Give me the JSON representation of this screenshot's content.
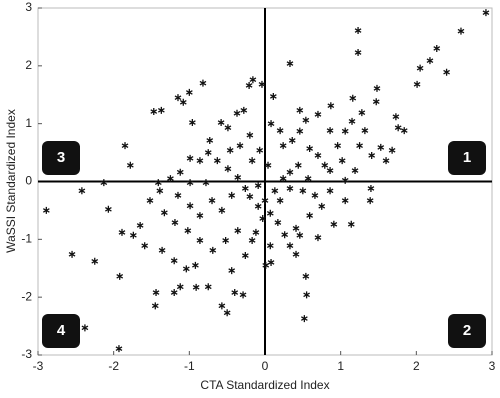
{
  "chart_data": {
    "type": "scatter",
    "xlabel": "CTA Standardized Index",
    "ylabel": "WaSSI Standardized Index",
    "annotations": [
      "1",
      "2",
      "3",
      "4"
    ],
    "xlim": [
      -3,
      3
    ],
    "ylim": [
      -3,
      3
    ],
    "xticks": [
      -3,
      -2,
      -1,
      0,
      1,
      2,
      3
    ],
    "yticks": [
      -3,
      -2,
      -1,
      0,
      1,
      2,
      3
    ],
    "color": "#111111",
    "x": [
      2.92,
      2.59,
      2.27,
      2.4,
      2.18,
      2.05,
      2.01,
      1.23,
      1.23,
      1.16,
      0.33,
      0.87,
      1.48,
      1.47,
      1.73,
      1.76,
      1.84,
      1.28,
      1.15,
      1.06,
      0.86,
      0.7,
      0.54,
      0.46,
      0.36,
      0.24,
      0.11,
      0.08,
      -0.04,
      -0.16,
      -0.21,
      -0.28,
      -0.37,
      -0.49,
      -0.58,
      -0.82,
      -1.0,
      -1.08,
      -1.37,
      -1.47,
      -1.15,
      -0.96,
      -1.85,
      -1.78,
      -2.13,
      -2.42,
      -2.89,
      -2.07,
      -1.89,
      -2.55,
      -2.25,
      -2.38,
      -1.92,
      -1.93,
      -1.59,
      -1.44,
      -1.45,
      -1.2,
      -1.12,
      -1.04,
      -0.91,
      -0.75,
      -0.57,
      -0.4,
      -0.29,
      -0.5,
      0.01,
      0.08,
      0.41,
      0.54,
      0.55,
      0.52,
      0.7,
      0.91,
      1.14,
      1.39,
      1.4,
      1.6,
      1.53,
      1.32,
      1.02,
      0.79,
      0.7,
      0.59,
      0.44,
      0.33,
      0.24,
      0.33,
      0.5,
      0.66,
      0.75,
      0.59,
      0.41,
      0.26,
      0.17,
      0.07,
      -0.03,
      -0.09,
      -0.2,
      -0.26,
      -0.36,
      -0.49,
      -0.63,
      -0.75,
      -0.86,
      -0.99,
      -1.12,
      -1.25,
      -1.39,
      -1.52,
      -1.33,
      -1.19,
      -1.02,
      -0.86,
      -0.69,
      -0.52,
      -0.36,
      -0.17,
      -0.7,
      -0.57,
      -0.86,
      -0.99,
      -1.15,
      -1.65,
      -1.74,
      -1.36,
      -1.2,
      -0.92,
      -0.44,
      -0.26,
      -0.12,
      0.07,
      0.33,
      0.46,
      0.86,
      1.06,
      1.19,
      0.96,
      1.25,
      1.41,
      1.68,
      0.46,
      0.2,
      -0.07,
      -0.2,
      -0.33,
      -0.46,
      -0.73,
      -0.17,
      0.04,
      0.13,
      -0.09,
      -0.44,
      -0.78,
      -1.41,
      -0.99,
      0.86,
      0.57,
      1.06,
      0,
      0.2
    ],
    "values": [
      2.92,
      2.6,
      2.3,
      1.89,
      2.09,
      1.96,
      1.68,
      2.61,
      2.23,
      1.44,
      2.04,
      1.31,
      1.61,
      1.38,
      1.12,
      0.93,
      0.88,
      1.19,
      1.04,
      0.87,
      0.88,
      1.16,
      1.06,
      0.87,
      0.71,
      0.62,
      1.47,
      1.0,
      1.68,
      1.76,
      1.66,
      1.23,
      1.18,
      0.93,
      1.02,
      1.7,
      1.54,
      1.37,
      1.23,
      1.21,
      1.45,
      1.02,
      0.62,
      0.28,
      -0.02,
      -0.16,
      -0.5,
      -0.48,
      -0.88,
      -1.26,
      -1.38,
      -2.53,
      -1.64,
      -2.89,
      -1.11,
      -1.92,
      -2.15,
      -1.92,
      -1.82,
      -1.51,
      -1.83,
      -1.82,
      -2.15,
      -1.92,
      -1.96,
      -2.27,
      -1.45,
      -1.4,
      -1.26,
      -1.64,
      -1.96,
      -2.37,
      -0.97,
      -0.74,
      -0.74,
      -0.33,
      -0.12,
      0.36,
      0.59,
      0.88,
      0.36,
      0.28,
      0.45,
      0.57,
      0.28,
      0.16,
      0.05,
      -0.12,
      -0.16,
      -0.24,
      -0.43,
      -0.59,
      -0.81,
      -0.92,
      -0.71,
      -0.55,
      -0.64,
      -0.43,
      -0.26,
      -0.12,
      0.07,
      0.22,
      0.36,
      0.5,
      0.36,
      0.4,
      0.16,
      0.05,
      -0.16,
      -0.33,
      -0.54,
      -0.71,
      -0.85,
      -1.02,
      -1.19,
      -1.02,
      -0.85,
      -1.02,
      -0.33,
      -0.5,
      -0.59,
      -0.42,
      -0.24,
      -0.76,
      -0.93,
      -1.19,
      -1.37,
      -1.45,
      -1.54,
      -1.28,
      -0.88,
      -1.11,
      -1.11,
      -0.93,
      -0.16,
      0.02,
      0.19,
      0.62,
      0.62,
      0.45,
      0.54,
      1.23,
      0.88,
      0.54,
      0.8,
      0.62,
      0.54,
      0.71,
      0.36,
      0.28,
      -0.16,
      -0.07,
      -0.24,
      -0.02,
      -0.02,
      -0.02,
      0.19,
      0.05,
      -0.33,
      -0.33,
      -0.33
    ]
  }
}
